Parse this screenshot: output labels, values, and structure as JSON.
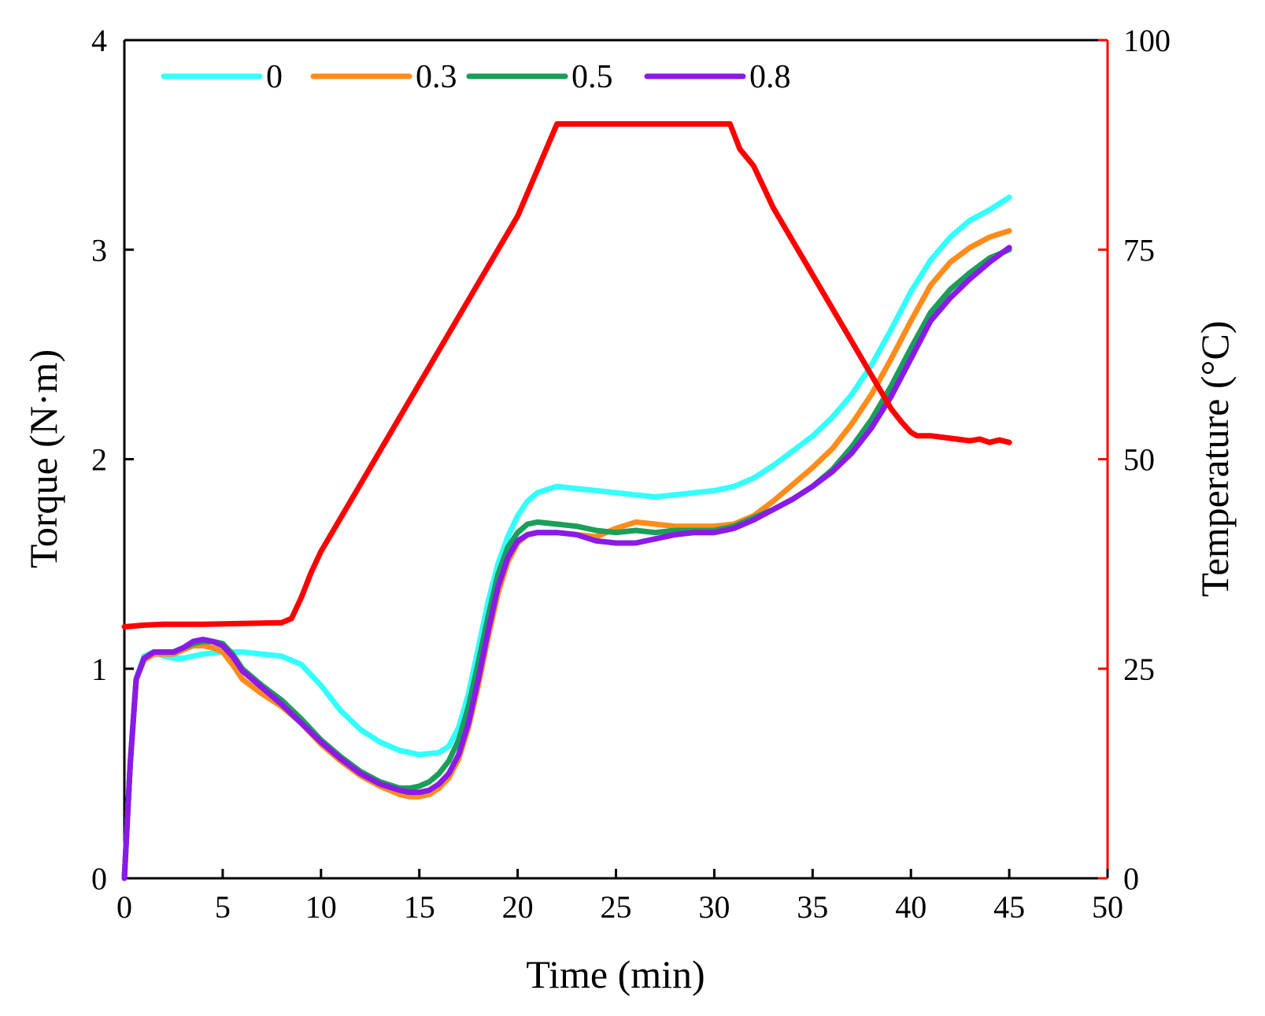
{
  "chart_data": {
    "type": "line",
    "title": "",
    "xlabel": "Time (min)",
    "ylabel": "Torque (N·m)",
    "y2label": "Temperature (°C)",
    "xlim": [
      0,
      50
    ],
    "ylim": [
      0,
      4
    ],
    "y2lim": [
      0,
      100
    ],
    "xticks": [
      "0",
      "5",
      "10",
      "15",
      "20",
      "25",
      "30",
      "35",
      "40",
      "45",
      "50"
    ],
    "yticks": [
      "0",
      "1",
      "2",
      "3",
      "4"
    ],
    "y2ticks": [
      "0",
      "25",
      "50",
      "75",
      "100"
    ],
    "grid": false,
    "legend_position": "top-left",
    "series": [
      {
        "name": "0",
        "axis": "left",
        "color": "#33ffff",
        "x": [
          0,
          0.3,
          0.6,
          1.0,
          1.5,
          2.0,
          2.5,
          3.0,
          4.0,
          5.0,
          6.0,
          7.0,
          8.0,
          9.0,
          10.0,
          11.0,
          12.0,
          13.0,
          14.0,
          15.0,
          16.0,
          16.5,
          17.0,
          17.5,
          18.0,
          18.5,
          19.0,
          19.5,
          20.0,
          20.5,
          21.0,
          22.0,
          23.0,
          24.0,
          25.0,
          26.0,
          27.0,
          28.0,
          29.0,
          30.0,
          31.0,
          32.0,
          33.0,
          34.0,
          35.0,
          36.0,
          37.0,
          38.0,
          39.0,
          40.0,
          41.0,
          42.0,
          43.0,
          44.0,
          45.0
        ],
        "values": [
          0,
          0.55,
          0.95,
          1.06,
          1.08,
          1.06,
          1.05,
          1.05,
          1.07,
          1.08,
          1.08,
          1.07,
          1.06,
          1.02,
          0.92,
          0.8,
          0.71,
          0.65,
          0.61,
          0.59,
          0.6,
          0.63,
          0.72,
          0.88,
          1.1,
          1.32,
          1.5,
          1.63,
          1.73,
          1.8,
          1.84,
          1.87,
          1.86,
          1.85,
          1.84,
          1.83,
          1.82,
          1.83,
          1.84,
          1.85,
          1.87,
          1.91,
          1.97,
          2.04,
          2.11,
          2.2,
          2.31,
          2.45,
          2.62,
          2.8,
          2.95,
          3.06,
          3.14,
          3.19,
          3.25
        ]
      },
      {
        "name": "0.3",
        "axis": "left",
        "color": "#ff8c1a",
        "x": [
          0,
          0.3,
          0.6,
          1.0,
          1.5,
          2.0,
          2.5,
          3.0,
          3.5,
          4.0,
          4.5,
          5.0,
          5.5,
          6.0,
          7.0,
          8.0,
          9.0,
          10.0,
          11.0,
          12.0,
          13.0,
          14.0,
          14.5,
          15.0,
          15.5,
          16.0,
          16.5,
          17.0,
          17.5,
          18.0,
          18.5,
          19.0,
          19.5,
          20.0,
          20.5,
          21.0,
          22.0,
          23.0,
          24.0,
          25.0,
          26.0,
          27.0,
          28.0,
          29.0,
          30.0,
          31.0,
          32.0,
          33.0,
          34.0,
          35.0,
          36.0,
          37.0,
          38.0,
          39.0,
          40.0,
          41.0,
          42.0,
          43.0,
          44.0,
          45.0
        ],
        "values": [
          0,
          0.55,
          0.95,
          1.04,
          1.07,
          1.07,
          1.07,
          1.09,
          1.11,
          1.11,
          1.1,
          1.08,
          1.02,
          0.95,
          0.88,
          0.82,
          0.74,
          0.64,
          0.56,
          0.49,
          0.44,
          0.4,
          0.39,
          0.39,
          0.4,
          0.43,
          0.48,
          0.57,
          0.72,
          0.92,
          1.15,
          1.36,
          1.51,
          1.6,
          1.64,
          1.65,
          1.65,
          1.64,
          1.63,
          1.67,
          1.7,
          1.69,
          1.68,
          1.68,
          1.68,
          1.69,
          1.73,
          1.8,
          1.88,
          1.96,
          2.05,
          2.17,
          2.31,
          2.48,
          2.66,
          2.83,
          2.94,
          3.01,
          3.06,
          3.09
        ]
      },
      {
        "name": "0.5",
        "axis": "left",
        "color": "#1a9e5a",
        "x": [
          0,
          0.3,
          0.6,
          1.0,
          1.5,
          2.0,
          2.5,
          3.0,
          3.5,
          4.0,
          4.5,
          5.0,
          5.5,
          6.0,
          7.0,
          8.0,
          9.0,
          10.0,
          11.0,
          12.0,
          13.0,
          14.0,
          14.5,
          15.0,
          15.5,
          16.0,
          16.5,
          17.0,
          17.5,
          18.0,
          18.5,
          19.0,
          19.5,
          20.0,
          20.5,
          21.0,
          22.0,
          23.0,
          24.0,
          25.0,
          26.0,
          27.0,
          28.0,
          29.0,
          30.0,
          31.0,
          32.0,
          33.0,
          34.0,
          35.0,
          36.0,
          37.0,
          38.0,
          39.0,
          40.0,
          41.0,
          42.0,
          43.0,
          44.0,
          45.0
        ],
        "values": [
          0,
          0.55,
          0.95,
          1.05,
          1.08,
          1.08,
          1.08,
          1.1,
          1.12,
          1.13,
          1.13,
          1.12,
          1.07,
          1.0,
          0.92,
          0.85,
          0.76,
          0.66,
          0.58,
          0.51,
          0.46,
          0.43,
          0.43,
          0.44,
          0.46,
          0.5,
          0.56,
          0.66,
          0.82,
          1.03,
          1.25,
          1.45,
          1.58,
          1.65,
          1.69,
          1.7,
          1.69,
          1.68,
          1.66,
          1.65,
          1.66,
          1.65,
          1.66,
          1.66,
          1.66,
          1.68,
          1.72,
          1.76,
          1.81,
          1.87,
          1.95,
          2.06,
          2.19,
          2.35,
          2.53,
          2.7,
          2.81,
          2.89,
          2.96,
          3.0
        ]
      },
      {
        "name": "0.8",
        "axis": "left",
        "color": "#8b1ae6",
        "x": [
          0,
          0.3,
          0.6,
          1.0,
          1.5,
          2.0,
          2.5,
          3.0,
          3.5,
          4.0,
          4.5,
          5.0,
          5.5,
          6.0,
          7.0,
          8.0,
          9.0,
          10.0,
          11.0,
          12.0,
          13.0,
          14.0,
          14.5,
          15.0,
          15.5,
          16.0,
          16.5,
          17.0,
          17.5,
          18.0,
          18.5,
          19.0,
          19.5,
          20.0,
          20.5,
          21.0,
          22.0,
          23.0,
          24.0,
          25.0,
          26.0,
          27.0,
          28.0,
          29.0,
          30.0,
          31.0,
          32.0,
          33.0,
          34.0,
          35.0,
          36.0,
          37.0,
          38.0,
          39.0,
          40.0,
          41.0,
          42.0,
          43.0,
          44.0,
          45.0
        ],
        "values": [
          0,
          0.55,
          0.95,
          1.05,
          1.08,
          1.08,
          1.08,
          1.1,
          1.13,
          1.14,
          1.13,
          1.11,
          1.06,
          0.99,
          0.91,
          0.83,
          0.74,
          0.65,
          0.57,
          0.5,
          0.45,
          0.42,
          0.41,
          0.41,
          0.42,
          0.45,
          0.5,
          0.59,
          0.74,
          0.95,
          1.18,
          1.39,
          1.53,
          1.61,
          1.64,
          1.65,
          1.65,
          1.64,
          1.61,
          1.6,
          1.6,
          1.62,
          1.64,
          1.65,
          1.65,
          1.67,
          1.71,
          1.76,
          1.81,
          1.87,
          1.94,
          2.03,
          2.15,
          2.3,
          2.48,
          2.66,
          2.77,
          2.86,
          2.94,
          3.01
        ]
      },
      {
        "name": "Temperature",
        "axis": "right",
        "color": "#ff0000",
        "x": [
          0,
          1,
          2,
          4,
          6,
          8,
          8.5,
          9.0,
          9.5,
          10.0,
          12.0,
          14.0,
          16.0,
          18.0,
          20.0,
          22.0,
          25.0,
          28.0,
          30.0,
          30.8,
          31.3,
          32.0,
          33.0,
          34.0,
          35.0,
          36.0,
          37.0,
          38.0,
          39.0,
          39.5,
          40.0,
          40.3,
          41.0,
          42.0,
          43.0,
          43.5,
          44.0,
          44.5,
          45.0
        ],
        "values": [
          30,
          30.2,
          30.3,
          30.3,
          30.4,
          30.5,
          31.0,
          33.5,
          36.5,
          39,
          47,
          55,
          63,
          71,
          79,
          90,
          90,
          90,
          90,
          90,
          87,
          85,
          80,
          76,
          72,
          68,
          64,
          60,
          56,
          54.5,
          53.2,
          52.8,
          52.8,
          52.5,
          52.2,
          52.4,
          52.0,
          52.3,
          52.0
        ]
      }
    ]
  }
}
